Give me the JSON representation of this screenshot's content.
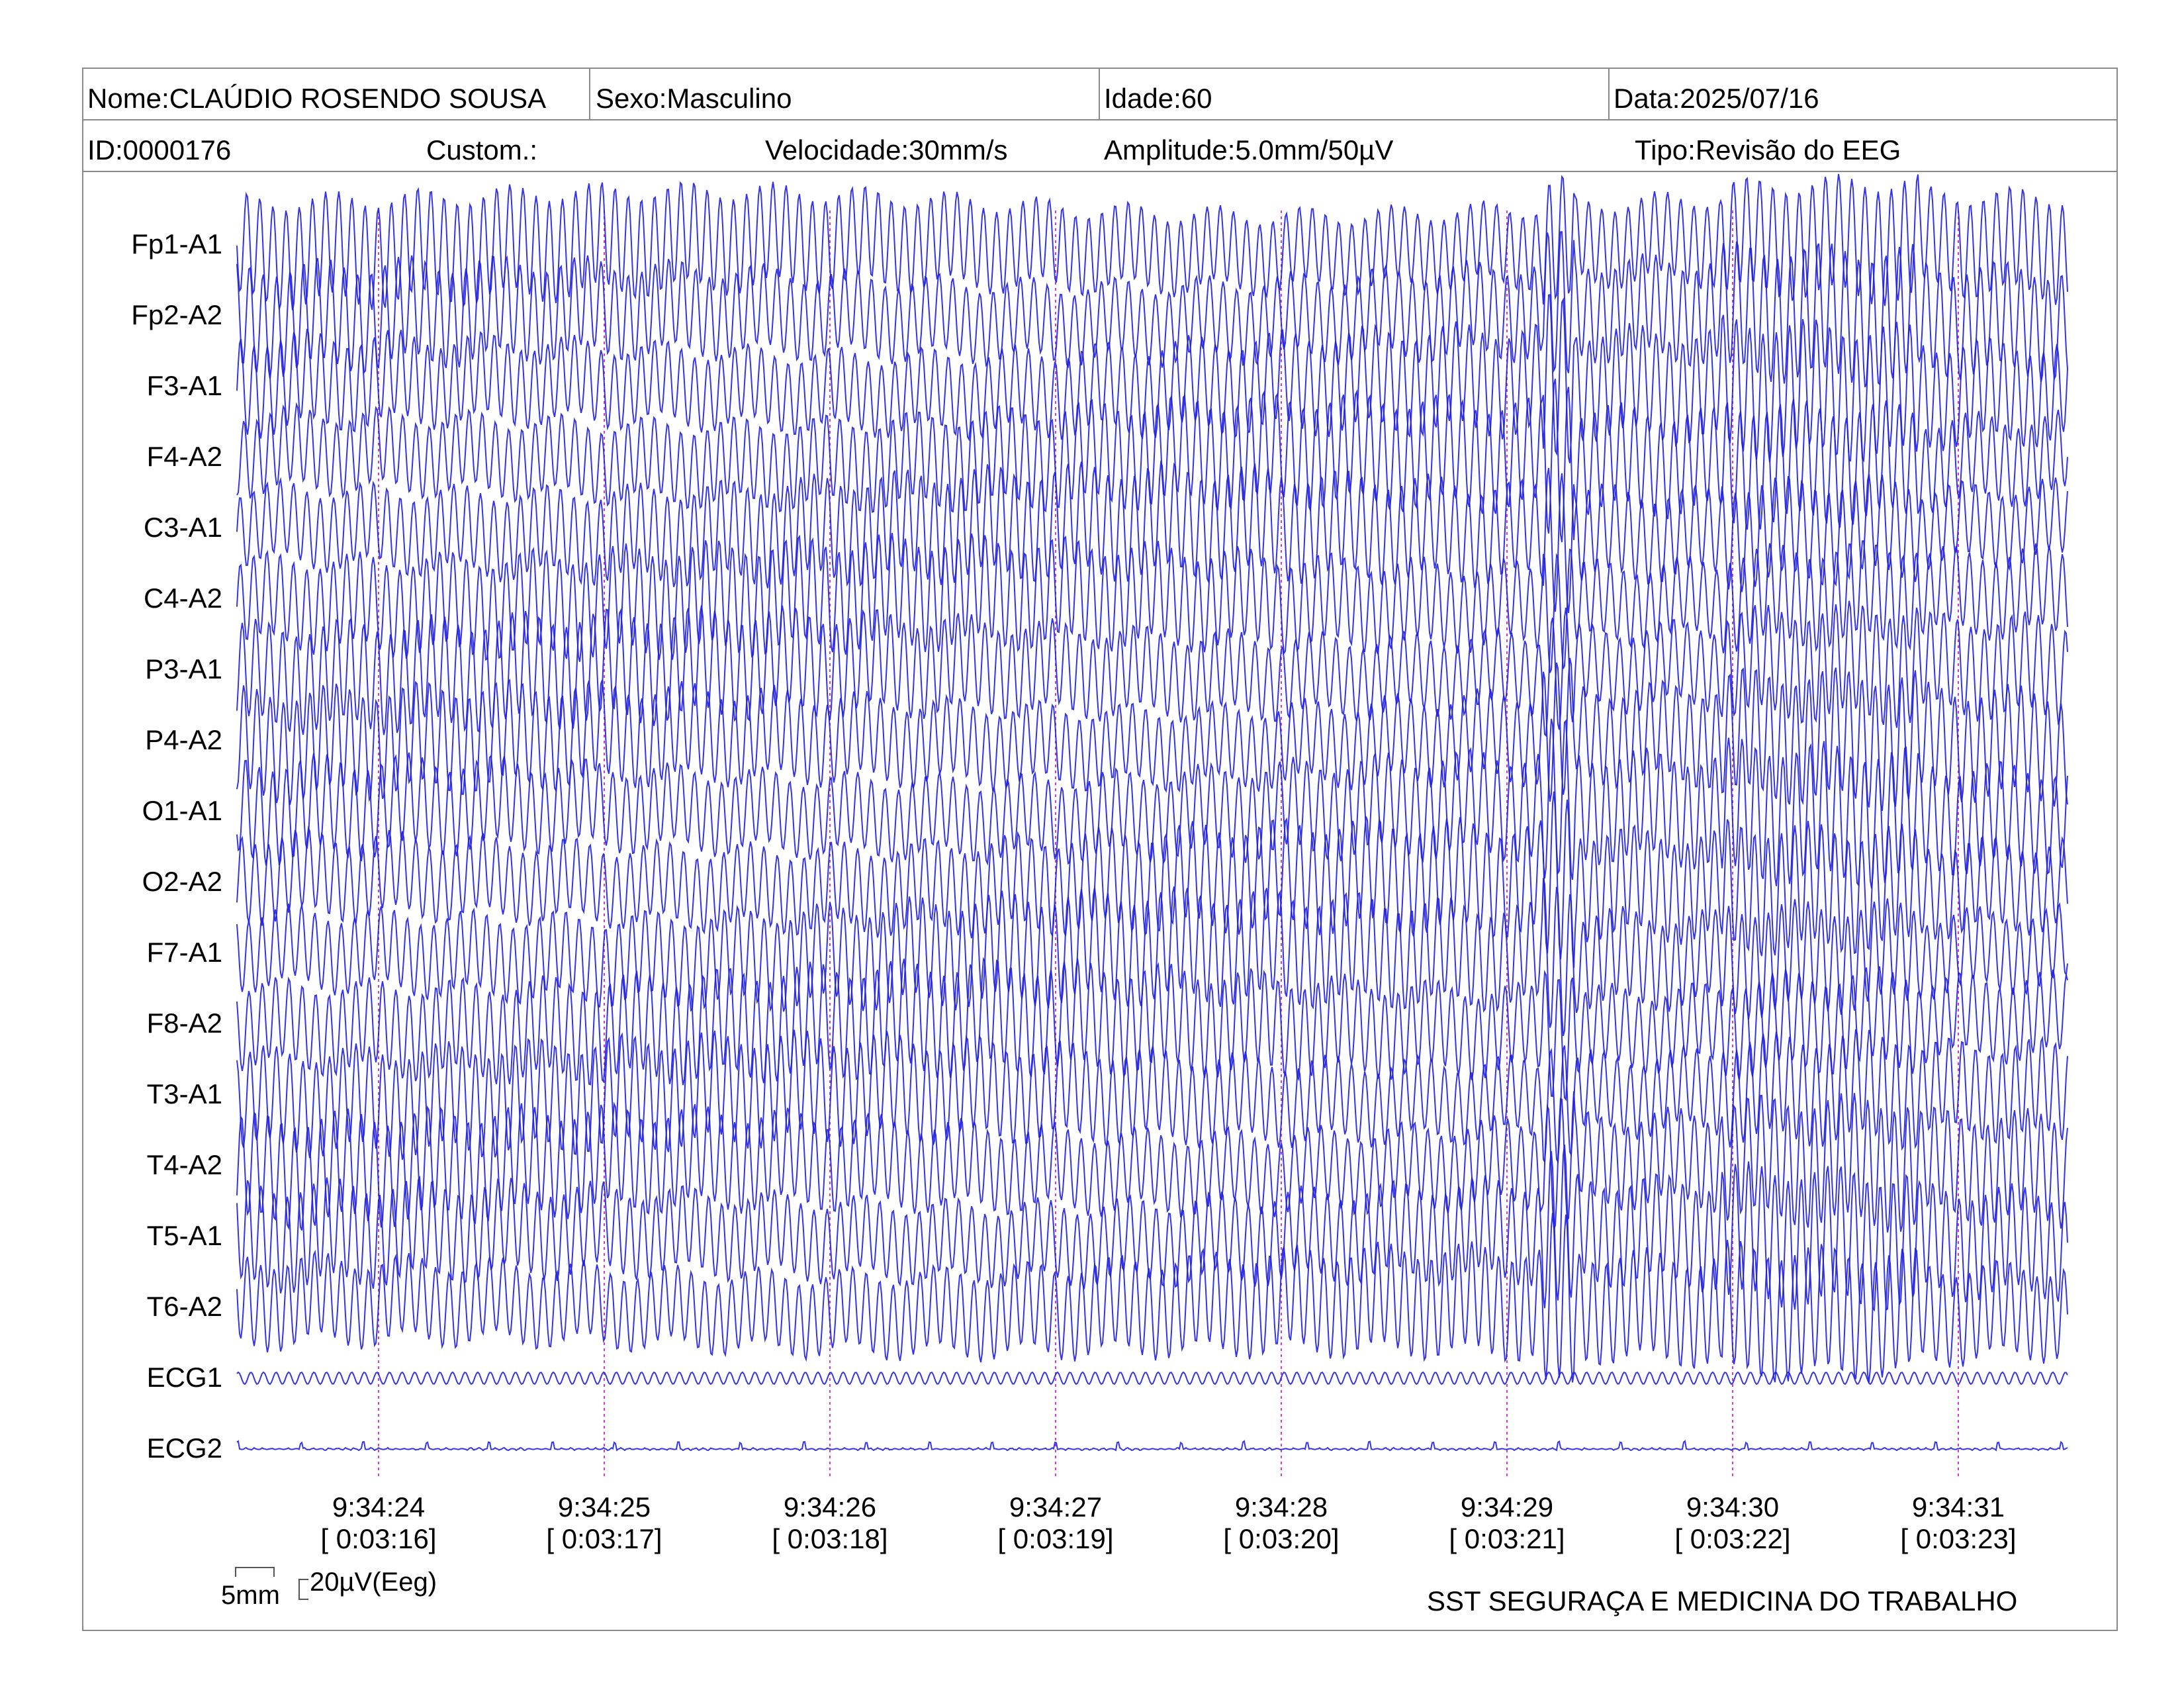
{
  "header": {
    "nome": "Nome:CLAÚDIO ROSENDO SOUSA",
    "sexo": "Sexo:Masculino",
    "idade": "Idade:60",
    "data": "Data:2025/07/16",
    "id": "ID:0000176",
    "custom": "Custom.:",
    "velocidade": "Velocidade:30mm/s",
    "amplitude": "Amplitude:5.0mm/50µV",
    "tipo": "Tipo:Revisão do EEG"
  },
  "footer": {
    "scale_x": "5mm",
    "scale_y": "20µV(Eeg)",
    "organization": "SST SEGURAÇA E MEDICINA DO TRABALHO"
  },
  "colors": {
    "trace": "#1f1fe0",
    "marker": "#d03bd0",
    "border": "#8a8a8a"
  },
  "chart_data": {
    "type": "line",
    "channels": [
      "Fp1-A1",
      "Fp2-A2",
      "F3-A1",
      "F4-A2",
      "C3-A1",
      "C4-A2",
      "P3-A1",
      "P4-A2",
      "O1-A1",
      "O2-A2",
      "F7-A1",
      "F8-A2",
      "T3-A1",
      "T4-A2",
      "T5-A1",
      "T6-A2",
      "ECG1",
      "ECG2"
    ],
    "time_markers": [
      {
        "clock": "9:34:24",
        "elapsed": "[ 0:03:16]"
      },
      {
        "clock": "9:34:25",
        "elapsed": "[ 0:03:17]"
      },
      {
        "clock": "9:34:26",
        "elapsed": "[ 0:03:18]"
      },
      {
        "clock": "9:34:27",
        "elapsed": "[ 0:03:19]"
      },
      {
        "clock": "9:34:28",
        "elapsed": "[ 0:03:20]"
      },
      {
        "clock": "9:34:29",
        "elapsed": "[ 0:03:21]"
      },
      {
        "clock": "9:34:30",
        "elapsed": "[ 0:03:22]"
      },
      {
        "clock": "9:34:31",
        "elapsed": "[ 0:03:23]"
      }
    ]
  }
}
